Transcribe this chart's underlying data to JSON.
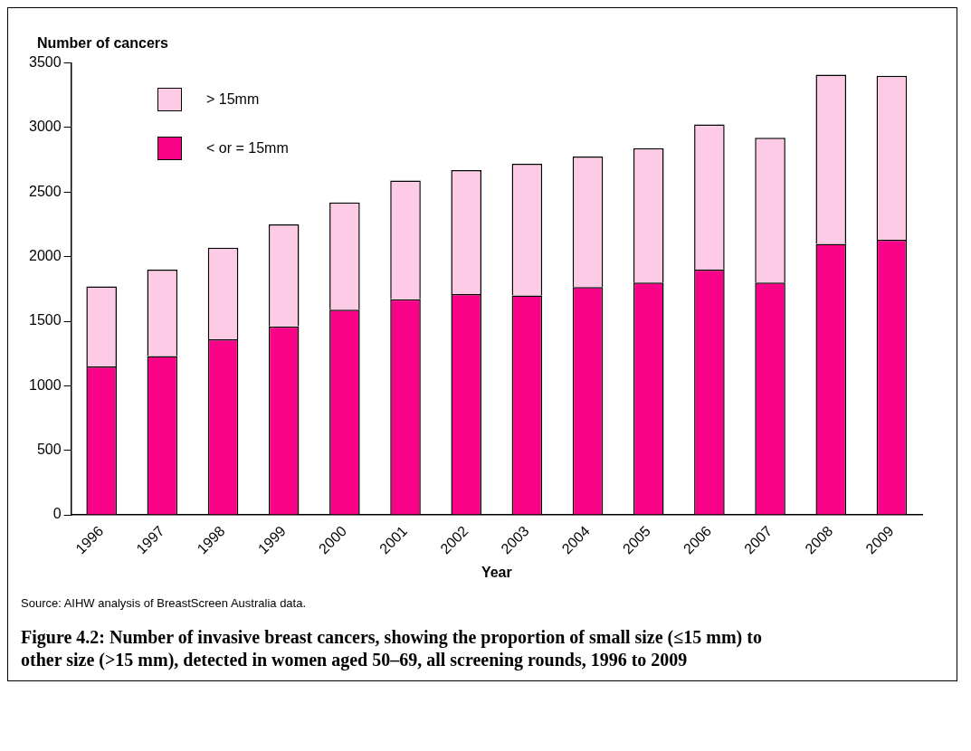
{
  "chart_data": {
    "type": "bar",
    "stacked": true,
    "title": "Figure 4.2: Number of invasive breast cancers, showing the proportion of small size (≤15 mm) to other size (>15 mm), detected in women aged 50–69, all screening rounds, 1996 to 2009",
    "xlabel": "Year",
    "ylabel": "Number of cancers",
    "categories": [
      "1996",
      "1997",
      "1998",
      "1999",
      "2000",
      "2001",
      "2002",
      "2003",
      "2004",
      "2005",
      "2006",
      "2007",
      "2008",
      "2009"
    ],
    "series": [
      {
        "name": "< or = 15mm",
        "color": "#fa0288",
        "values": [
          1150,
          1230,
          1360,
          1460,
          1590,
          1670,
          1710,
          1700,
          1765,
          1800,
          1900,
          1800,
          2100,
          2130
        ]
      },
      {
        "name": "> 15mm",
        "color": "#fecbe6",
        "values": [
          620,
          670,
          710,
          790,
          830,
          920,
          960,
          1020,
          1010,
          1040,
          1125,
          1120,
          1310,
          1270
        ]
      }
    ],
    "ylim": [
      0,
      3500
    ],
    "yticks": [
      0,
      500,
      1000,
      1500,
      2000,
      2500,
      3000,
      3500
    ],
    "grid": false,
    "legend": "top left",
    "annotations": [
      "Source: AIHW analysis of BreastScreen Australia data."
    ]
  }
}
